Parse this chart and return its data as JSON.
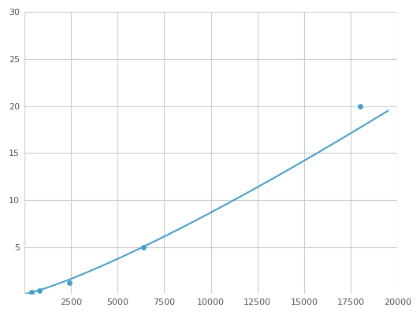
{
  "x": [
    400,
    800,
    2400,
    6400,
    18000
  ],
  "y": [
    0.2,
    0.4,
    1.2,
    5.0,
    20.0
  ],
  "line_color": "#4a9fc8",
  "marker_color": "#4a9fc8",
  "marker_size": 5,
  "xlim": [
    0,
    20000
  ],
  "ylim": [
    0,
    30
  ],
  "xticks": [
    0,
    2500,
    5000,
    7500,
    10000,
    12500,
    15000,
    17500,
    20000
  ],
  "yticks": [
    0,
    5,
    10,
    15,
    20,
    25,
    30
  ],
  "grid_color": "#cccccc",
  "background_color": "#ffffff",
  "line_width": 1.5
}
